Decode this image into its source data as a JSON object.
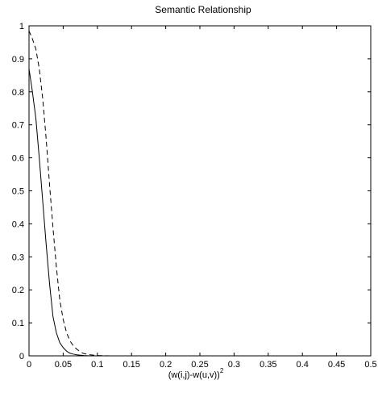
{
  "chart_data": {
    "type": "line",
    "title": "Semantic Relationship",
    "xlabel": "(w(i,j)-w(u,v))",
    "xlabel_superscript": "2",
    "ylabel": "",
    "xlim": [
      0,
      0.5
    ],
    "ylim": [
      0,
      1
    ],
    "xticks": [
      "0",
      "0.05",
      "0.1",
      "0.15",
      "0.2",
      "0.25",
      "0.3",
      "0.35",
      "0.4",
      "0.45",
      "0.5"
    ],
    "yticks": [
      "0",
      "0.1",
      "0.2",
      "0.3",
      "0.4",
      "0.5",
      "0.6",
      "0.7",
      "0.8",
      "0.9",
      "1"
    ],
    "grid": false,
    "legend": "none",
    "series": [
      {
        "style": "solid",
        "color": "#000000",
        "x": [
          0,
          0.005,
          0.01,
          0.015,
          0.02,
          0.025,
          0.03,
          0.035,
          0.04,
          0.045,
          0.05,
          0.055,
          0.06,
          0.065,
          0.07,
          0.08,
          0.09,
          0.1,
          0.15,
          0.2,
          0.25,
          0.3,
          0.35,
          0.4,
          0.41
        ],
        "y": [
          0.87,
          0.8,
          0.72,
          0.6,
          0.47,
          0.34,
          0.22,
          0.12,
          0.07,
          0.04,
          0.025,
          0.014,
          0.008,
          0.005,
          0.003,
          0.001,
          0,
          0,
          0,
          0,
          0,
          0,
          0,
          0,
          0
        ]
      },
      {
        "style": "dashed",
        "color": "#000000",
        "x": [
          0,
          0.005,
          0.01,
          0.015,
          0.02,
          0.025,
          0.03,
          0.035,
          0.04,
          0.045,
          0.05,
          0.055,
          0.06,
          0.065,
          0.07,
          0.075,
          0.08,
          0.09,
          0.1,
          0.12,
          0.15,
          0.2,
          0.25,
          0.3,
          0.35,
          0.4,
          0.41
        ],
        "y": [
          0.985,
          0.96,
          0.93,
          0.87,
          0.78,
          0.66,
          0.52,
          0.39,
          0.27,
          0.17,
          0.11,
          0.07,
          0.045,
          0.03,
          0.02,
          0.012,
          0.007,
          0.003,
          0.001,
          0,
          0,
          0,
          0,
          0,
          0,
          0,
          0
        ]
      }
    ]
  }
}
